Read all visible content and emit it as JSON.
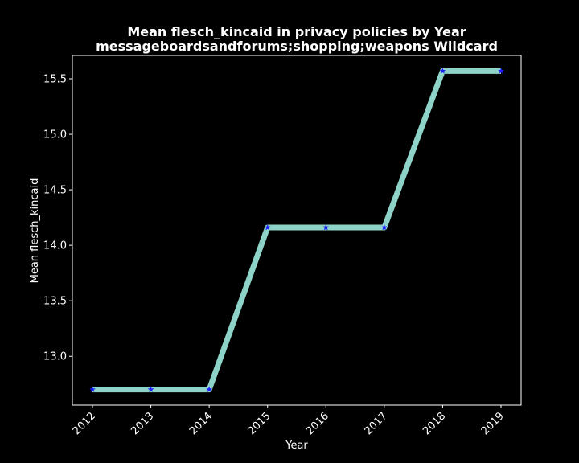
{
  "chart_data": {
    "type": "line",
    "title": "Mean flesch_kincaid in privacy policies by Year",
    "subtitle": "messageboardsandforums;shopping;weapons Wildcard",
    "xlabel": "Year",
    "ylabel": "Mean flesch_kincaid",
    "x": [
      "2012",
      "2013",
      "2014",
      "2015",
      "2016",
      "2017",
      "2018",
      "2019"
    ],
    "series": [
      {
        "values": [
          12.7,
          12.7,
          12.7,
          14.16,
          14.16,
          14.16,
          15.57,
          15.57
        ]
      }
    ],
    "yticks": [
      "13.0",
      "13.5",
      "14.0",
      "14.5",
      "15.0",
      "15.5"
    ],
    "ylim": [
      12.56,
      15.71
    ],
    "grid": false,
    "legend": "none",
    "colors": {
      "background": "#000000",
      "line": "#8dd3c7",
      "marker": "#1f1fff",
      "text": "#ffffff",
      "axes": "#ffffff"
    }
  }
}
